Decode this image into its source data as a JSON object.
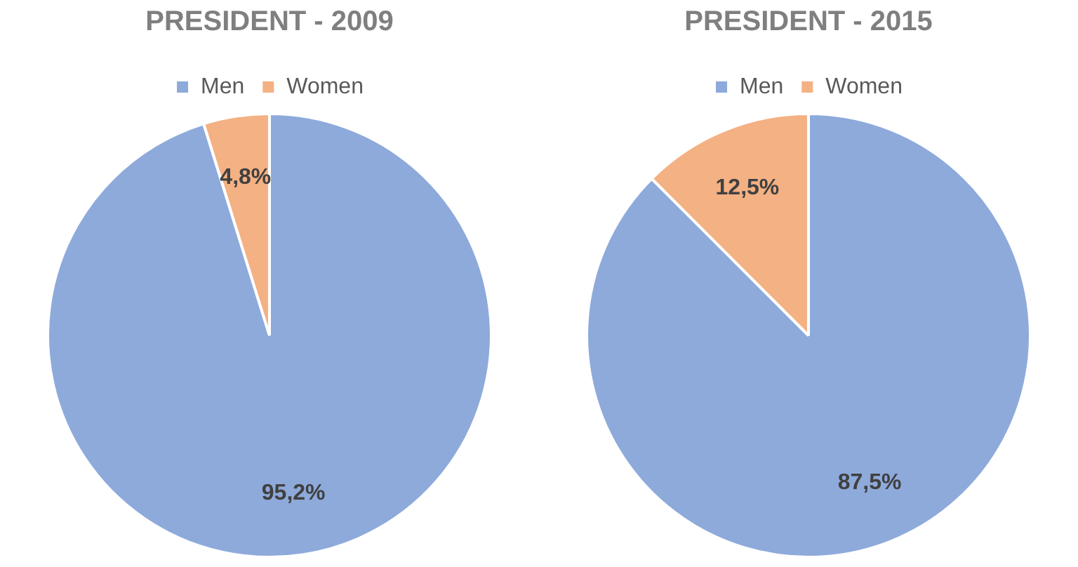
{
  "chart_data": [
    {
      "type": "pie",
      "title": "PRESIDENT - 2009",
      "categories": [
        "Men",
        "Women"
      ],
      "values": [
        95.2,
        4.8
      ],
      "colors": [
        "#8eaadb",
        "#f4b183"
      ],
      "value_labels": [
        "95,2%",
        "4,8%"
      ],
      "legend": "top"
    },
    {
      "type": "pie",
      "title": "PRESIDENT - 2015",
      "categories": [
        "Men",
        "Women"
      ],
      "values": [
        87.5,
        12.5
      ],
      "colors": [
        "#8eaadb",
        "#f4b183"
      ],
      "value_labels": [
        "87,5%",
        "12,5%"
      ],
      "legend": "top"
    }
  ]
}
